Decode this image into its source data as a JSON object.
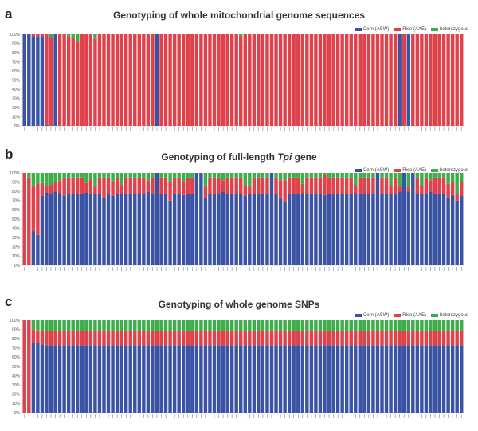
{
  "chart_data": [
    {
      "type": "bar",
      "stacked": true,
      "panel": "a",
      "title": "Genotyping of whole mitochondrial genome sequences",
      "ylim": [
        0,
        100
      ],
      "yticks": [
        "0%",
        "10%",
        "20%",
        "30%",
        "40%",
        "50%",
        "60%",
        "70%",
        "80%",
        "90%",
        "100%"
      ],
      "legend": [
        {
          "name": "Corn (ASW)",
          "color": "#3a53a4"
        },
        {
          "name": "Rice (AXE)",
          "color": "#e0424b"
        },
        {
          "name": "heterozygous",
          "color": "#3dae4a"
        }
      ],
      "bar_count": 100,
      "default_values": {
        "corn": 0,
        "rice": 100,
        "het": 0
      },
      "overrides": [
        {
          "index": 0,
          "corn": 100,
          "rice": 0,
          "het": 0
        },
        {
          "index": 1,
          "corn": 100,
          "rice": 0,
          "het": 0
        },
        {
          "index": 2,
          "corn": 98,
          "rice": 2,
          "het": 0
        },
        {
          "index": 3,
          "corn": 98,
          "rice": 2,
          "het": 0
        },
        {
          "index": 4,
          "corn": 98,
          "rice": 2,
          "het": 0
        },
        {
          "index": 5,
          "corn": 1,
          "rice": 99,
          "het": 0
        },
        {
          "index": 6,
          "corn": 0,
          "rice": 97,
          "het": 3
        },
        {
          "index": 7,
          "corn": 100,
          "rice": 0,
          "het": 0
        },
        {
          "index": 10,
          "corn": 0,
          "rice": 98,
          "het": 2
        },
        {
          "index": 11,
          "corn": 0,
          "rice": 96,
          "het": 4
        },
        {
          "index": 12,
          "corn": 0,
          "rice": 92,
          "het": 8
        },
        {
          "index": 16,
          "corn": 0,
          "rice": 95,
          "het": 5
        },
        {
          "index": 30,
          "corn": 100,
          "rice": 0,
          "het": 0
        },
        {
          "index": 49,
          "corn": 0,
          "rice": 98,
          "het": 2
        },
        {
          "index": 85,
          "corn": 100,
          "rice": 0,
          "het": 0
        },
        {
          "index": 87,
          "corn": 100,
          "rice": 0,
          "het": 0
        }
      ]
    },
    {
      "type": "bar",
      "stacked": true,
      "panel": "b",
      "title_parts": [
        "Genotyping of full-length ",
        "Tpi",
        " gene"
      ],
      "ylim": [
        0,
        100
      ],
      "yticks": [
        "0%",
        "10%",
        "20%",
        "30%",
        "40%",
        "50%",
        "60%",
        "70%",
        "80%",
        "90%",
        "100%"
      ],
      "legend": [
        {
          "name": "Corn (ASW)",
          "color": "#3a53a4"
        },
        {
          "name": "Rice (AXE)",
          "color": "#e0424b"
        },
        {
          "name": "heterozygous",
          "color": "#3dae4a"
        }
      ],
      "bar_count": 100,
      "default_values": {
        "corn": 77,
        "rice": 18,
        "het": 5
      },
      "overrides": [
        {
          "index": 0,
          "corn": 0,
          "rice": 100,
          "het": 0
        },
        {
          "index": 1,
          "corn": 0,
          "rice": 95,
          "het": 5
        },
        {
          "index": 2,
          "corn": 37,
          "rice": 48,
          "het": 15
        },
        {
          "index": 3,
          "corn": 33,
          "rice": 55,
          "het": 12
        },
        {
          "index": 4,
          "corn": 75,
          "rice": 14,
          "het": 11
        },
        {
          "index": 5,
          "corn": 79,
          "rice": 7,
          "het": 14
        },
        {
          "index": 6,
          "corn": 77,
          "rice": 10,
          "het": 13
        },
        {
          "index": 7,
          "corn": 80,
          "rice": 10,
          "het": 10
        },
        {
          "index": 8,
          "corn": 78,
          "rice": 14,
          "het": 8
        },
        {
          "index": 9,
          "corn": 75,
          "rice": 20,
          "het": 5
        },
        {
          "index": 14,
          "corn": 79,
          "rice": 10,
          "het": 11
        },
        {
          "index": 15,
          "corn": 77,
          "rice": 16,
          "het": 7
        },
        {
          "index": 16,
          "corn": 77,
          "rice": 8,
          "het": 15
        },
        {
          "index": 18,
          "corn": 73,
          "rice": 22,
          "het": 5
        },
        {
          "index": 20,
          "corn": 75,
          "rice": 15,
          "het": 10
        },
        {
          "index": 22,
          "corn": 77,
          "rice": 10,
          "het": 13
        },
        {
          "index": 26,
          "corn": 78,
          "rice": 16,
          "het": 6
        },
        {
          "index": 28,
          "corn": 80,
          "rice": 12,
          "het": 8
        },
        {
          "index": 30,
          "corn": 100,
          "rice": 0,
          "het": 0
        },
        {
          "index": 33,
          "corn": 70,
          "rice": 20,
          "het": 10
        },
        {
          "index": 36,
          "corn": 76,
          "rice": 15,
          "het": 9
        },
        {
          "index": 39,
          "corn": 100,
          "rice": 0,
          "het": 0
        },
        {
          "index": 40,
          "corn": 100,
          "rice": 0,
          "het": 0
        },
        {
          "index": 41,
          "corn": 73,
          "rice": 12,
          "het": 15
        },
        {
          "index": 45,
          "corn": 80,
          "rice": 12,
          "het": 8
        },
        {
          "index": 50,
          "corn": 75,
          "rice": 12,
          "het": 13
        },
        {
          "index": 51,
          "corn": 77,
          "rice": 8,
          "het": 15
        },
        {
          "index": 56,
          "corn": 100,
          "rice": 0,
          "het": 0
        },
        {
          "index": 58,
          "corn": 72,
          "rice": 20,
          "het": 8
        },
        {
          "index": 59,
          "corn": 69,
          "rice": 23,
          "het": 8
        },
        {
          "index": 63,
          "corn": 78,
          "rice": 10,
          "het": 12
        },
        {
          "index": 68,
          "corn": 76,
          "rice": 22,
          "het": 2
        },
        {
          "index": 75,
          "corn": 78,
          "rice": 8,
          "het": 14
        },
        {
          "index": 80,
          "corn": 100,
          "rice": 0,
          "het": 0
        },
        {
          "index": 83,
          "corn": 77,
          "rice": 10,
          "het": 13
        },
        {
          "index": 85,
          "corn": 80,
          "rice": 5,
          "het": 15
        },
        {
          "index": 86,
          "corn": 100,
          "rice": 0,
          "het": 0
        },
        {
          "index": 87,
          "corn": 80,
          "rice": 5,
          "het": 15
        },
        {
          "index": 88,
          "corn": 100,
          "rice": 0,
          "het": 0
        },
        {
          "index": 90,
          "corn": 77,
          "rice": 10,
          "het": 13
        },
        {
          "index": 92,
          "corn": 80,
          "rice": 12,
          "het": 8
        },
        {
          "index": 96,
          "corn": 73,
          "rice": 15,
          "het": 12
        },
        {
          "index": 97,
          "corn": 76,
          "rice": 14,
          "het": 10
        },
        {
          "index": 98,
          "corn": 70,
          "rice": 8,
          "het": 22
        },
        {
          "index": 99,
          "corn": 75,
          "rice": 15,
          "het": 10
        }
      ]
    },
    {
      "type": "bar",
      "stacked": true,
      "panel": "c",
      "title": "Genotyping of whole genome SNPs",
      "ylim": [
        0,
        100
      ],
      "yticks": [
        "0%",
        "10%",
        "20%",
        "30%",
        "40%",
        "50%",
        "60%",
        "70%",
        "80%",
        "90%",
        "100%"
      ],
      "legend": [
        {
          "name": "Corn (ASW)",
          "color": "#3a53a4"
        },
        {
          "name": "Rice (AXE)",
          "color": "#e0424b"
        },
        {
          "name": "heterozygous",
          "color": "#3dae4a"
        }
      ],
      "bar_count": 100,
      "default_values": {
        "corn": 73,
        "rice": 15,
        "het": 12
      },
      "overrides": [
        {
          "index": 0,
          "corn": 0,
          "rice": 100,
          "het": 0
        },
        {
          "index": 1,
          "corn": 0,
          "rice": 100,
          "het": 0
        },
        {
          "index": 2,
          "corn": 75,
          "rice": 15,
          "het": 10
        },
        {
          "index": 3,
          "corn": 75,
          "rice": 14,
          "het": 11
        },
        {
          "index": 4,
          "corn": 74,
          "rice": 14,
          "het": 12
        }
      ]
    }
  ]
}
